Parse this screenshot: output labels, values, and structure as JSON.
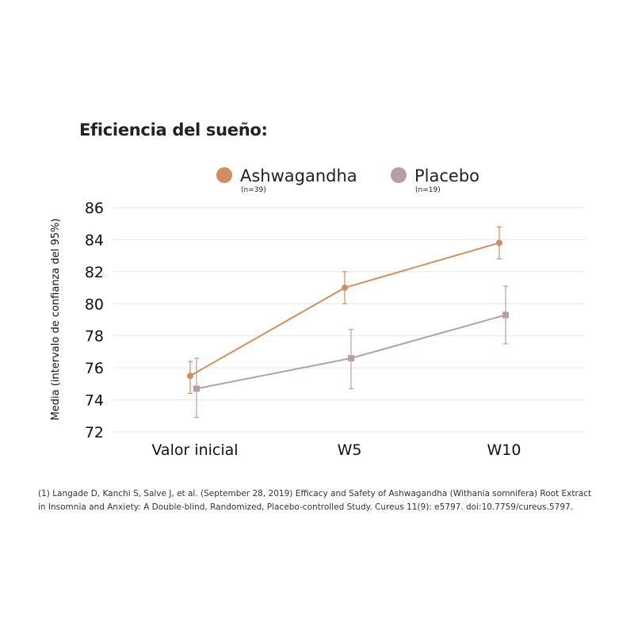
{
  "title": "Eficiencia del sueño:",
  "citation": "(1) Langade D, Kanchi S, Salve J, et al. (September 28, 2019) Efficacy and Safety of Ashwagandha (Withania somnifera) Root Extract in Insomnia and Anxiety: A Double-blind, Randomized, Placebo-controlled Study. Cureus 11(9): e5797. doi:10.7759/cureus.5797.",
  "colors": {
    "ashwagandha": "#D08F62",
    "placebo": "#B49EAB",
    "grid": "#E6E6E6"
  },
  "chart_data": {
    "type": "line",
    "title": "Eficiencia del sueño:",
    "xlabel": "",
    "ylabel": "Media (intervalo de confianza del 95%)",
    "ylim": [
      72,
      86
    ],
    "yticks": [
      72,
      74,
      76,
      78,
      80,
      82,
      84,
      86
    ],
    "grid": true,
    "legend_position": "top",
    "categories": [
      "Valor inicial",
      "W5",
      "W10"
    ],
    "series": [
      {
        "name": "Ashwagandha",
        "n_label": "(n=39)",
        "marker": "circle",
        "values": [
          75.5,
          81.0,
          83.8
        ],
        "ci_low": [
          74.4,
          80.0,
          82.8
        ],
        "ci_high": [
          76.4,
          82.0,
          84.8
        ]
      },
      {
        "name": "Placebo",
        "n_label": "(n=19)",
        "marker": "square",
        "values": [
          74.7,
          76.6,
          79.3
        ],
        "ci_low": [
          72.9,
          74.7,
          77.5
        ],
        "ci_high": [
          76.6,
          78.4,
          81.1
        ]
      }
    ]
  }
}
